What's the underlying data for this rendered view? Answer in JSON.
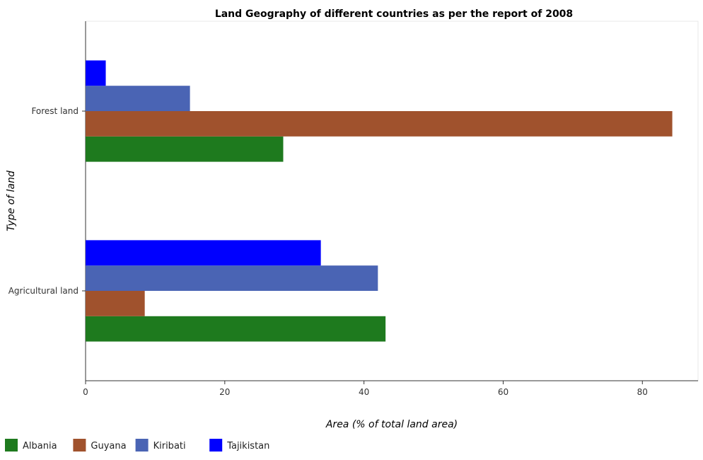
{
  "chart_data": {
    "type": "bar",
    "orientation": "horizontal",
    "title": "Land Geography of different countries as per the report of 2008",
    "xlabel": "Area (% of total land area)",
    "ylabel": "Type of land",
    "categories": [
      "Forest land",
      "Agricultural land"
    ],
    "series": [
      {
        "name": "Albania",
        "color": "#1e7a1e",
        "values": [
          28.4,
          43.1
        ]
      },
      {
        "name": "Guyana",
        "color": "#a0522d",
        "values": [
          84.3,
          8.5
        ]
      },
      {
        "name": "Kiribati",
        "color": "#4a64b4",
        "values": [
          15.0,
          42.0
        ]
      },
      {
        "name": "Tajikistan",
        "color": "#0000ff",
        "values": [
          2.9,
          33.8
        ]
      }
    ],
    "xlim": [
      0,
      88
    ],
    "xticks": [
      0,
      20,
      40,
      60,
      80
    ],
    "grid": false,
    "legend_position": "bottom-left"
  }
}
